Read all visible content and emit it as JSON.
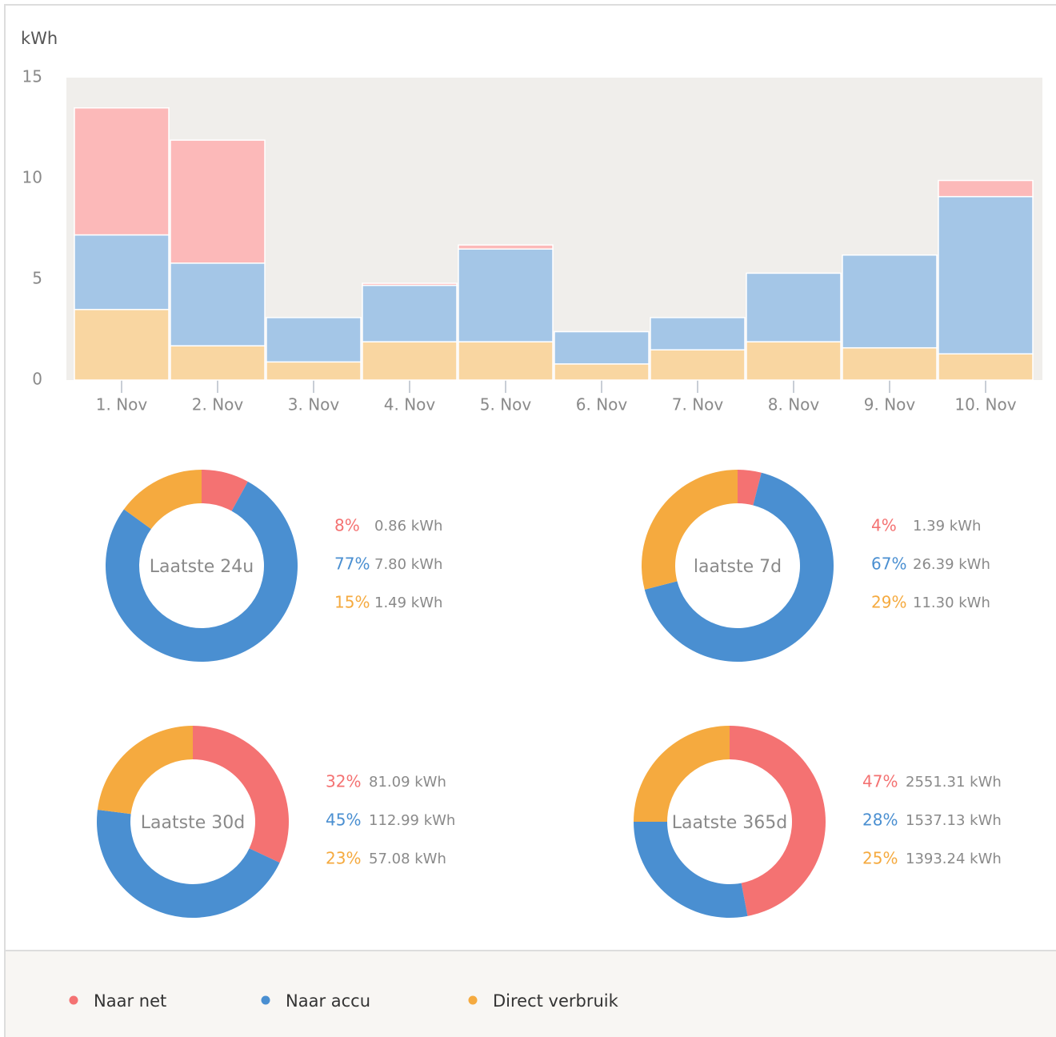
{
  "chart_data": [
    {
      "type": "bar",
      "stacked": true,
      "y_label": "kWh",
      "categories": [
        "1. Nov",
        "2. Nov",
        "3. Nov",
        "4. Nov",
        "5. Nov",
        "6. Nov",
        "7. Nov",
        "8. Nov",
        "9. Nov",
        "10. Nov"
      ],
      "series": [
        {
          "name": "Naar net",
          "color": "#f47272",
          "bar_color": "#fcb9b9",
          "values": [
            6.3,
            6.1,
            0,
            0.1,
            0.2,
            0,
            0,
            0,
            0,
            0.8
          ]
        },
        {
          "name": "Naar accu",
          "color": "#4a8fd1",
          "bar_color": "#a4c6e7",
          "values": [
            3.7,
            4.1,
            2.2,
            2.8,
            4.6,
            1.6,
            1.6,
            3.4,
            4.6,
            7.8
          ]
        },
        {
          "name": "Direct verbruik",
          "color": "#f5aa3f",
          "bar_color": "#f9d6a1",
          "values": [
            3.5,
            1.7,
            0.9,
            1.9,
            1.9,
            0.8,
            1.5,
            1.9,
            1.6,
            1.3
          ]
        }
      ],
      "ylim": [
        0,
        15
      ],
      "yticks": [
        0,
        5,
        10,
        15
      ]
    },
    {
      "type": "pie",
      "donut": true,
      "title": "Laatste 24u",
      "values": [
        8,
        77,
        15
      ],
      "value_labels": [
        "8%",
        "77%",
        "15%"
      ],
      "amount_labels": [
        "0.86 kWh",
        "7.80 kWh",
        "1.49 kWh"
      ]
    },
    {
      "type": "pie",
      "donut": true,
      "title": "laatste 7d",
      "values": [
        4,
        67,
        29
      ],
      "value_labels": [
        "4%",
        "67%",
        "29%"
      ],
      "amount_labels": [
        "1.39 kWh",
        "26.39 kWh",
        "11.30 kWh"
      ]
    },
    {
      "type": "pie",
      "donut": true,
      "title": "Laatste 30d",
      "values": [
        32,
        45,
        23
      ],
      "value_labels": [
        "32%",
        "45%",
        "23%"
      ],
      "amount_labels": [
        "81.09 kWh",
        "112.99 kWh",
        "57.08 kWh"
      ]
    },
    {
      "type": "pie",
      "donut": true,
      "title": "Laatste 365d",
      "values": [
        47,
        28,
        25
      ],
      "value_labels": [
        "47%",
        "28%",
        "25%"
      ],
      "amount_labels": [
        "2551.31 kWh",
        "1537.13 kWh",
        "1393.24 kWh"
      ]
    }
  ]
}
